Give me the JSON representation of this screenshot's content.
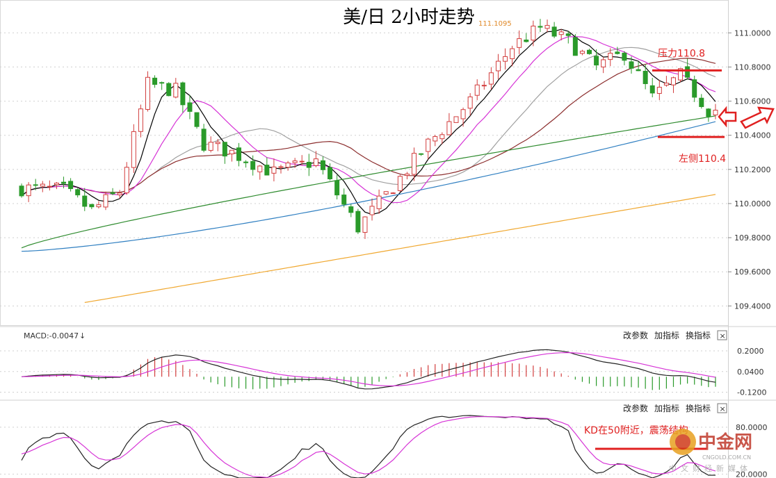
{
  "chart_data": {
    "type": "candlestick",
    "title": "美/日 2小时走势",
    "high_label": "111.1095",
    "y_ticks": [
      "111.0000",
      "110.8000",
      "110.6000",
      "110.4000",
      "110.2000",
      "110.0000",
      "109.8000",
      "109.6000",
      "109.4000"
    ],
    "ylim": [
      109.32,
      111.16
    ],
    "grid": true,
    "candles_count": 100,
    "annotations": {
      "resistance": {
        "label": "压力110.8",
        "value": 110.78
      },
      "support": {
        "label": "左侧110.4",
        "value": 110.39
      },
      "kd_note": {
        "label": "KD在50附近，震荡结构"
      }
    },
    "macd": {
      "label": "MACD:-0.0047",
      "y_ticks": [
        "0.2000",
        "0.0400",
        "-0.1200"
      ],
      "ylim": [
        -0.16,
        0.27
      ]
    },
    "kd": {
      "y_ticks": [
        "80.0000",
        "20.0000"
      ],
      "ylim": [
        15,
        95
      ]
    },
    "controls": {
      "params": "改参数",
      "add": "加指标",
      "swap": "换指标",
      "close": "×"
    },
    "colors": {
      "up": "#d23c3c",
      "down": "#2a9a2a",
      "ma5": "#000000",
      "ma10": "#d633d6",
      "ma20": "#a0a0a0",
      "ma30": "#8b2c2c",
      "ma60": "#2e8b2e",
      "ma120": "#2f7fc1",
      "ma250": "#f0a830",
      "annotation": "#e02020"
    },
    "watermark": {
      "name": "中金网",
      "site": "CNGOLD.COM.CN",
      "slogan": "中文财经新媒体"
    }
  }
}
